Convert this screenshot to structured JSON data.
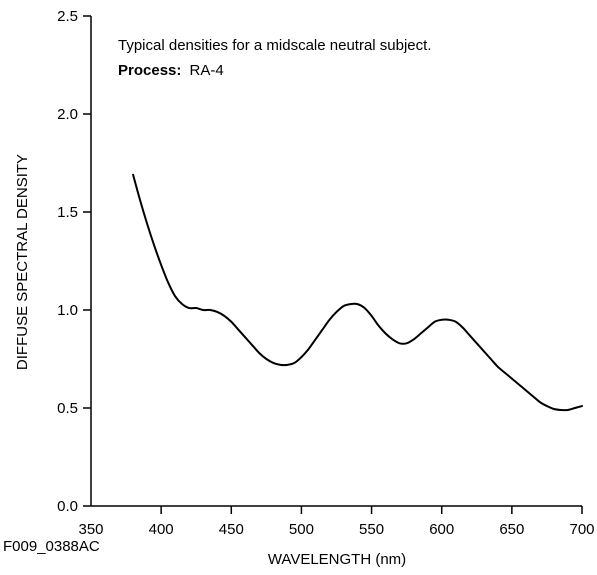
{
  "chart_data": {
    "type": "line",
    "title": "",
    "xlabel": "WAVELENGTH (nm)",
    "ylabel": "DIFFUSE SPECTRAL DENSITY",
    "xlim": [
      350,
      700
    ],
    "ylim": [
      0.0,
      2.5
    ],
    "xticks": [
      350,
      400,
      450,
      500,
      550,
      600,
      650,
      700
    ],
    "xtick_labels": [
      "350",
      "400",
      "450",
      "500",
      "550",
      "600",
      "650",
      "700"
    ],
    "yticks": [
      0.0,
      0.5,
      1.0,
      1.5,
      2.0,
      2.5
    ],
    "ytick_labels": [
      "0.0",
      "0.5",
      "1.0",
      "1.5",
      "2.0",
      "2.5"
    ],
    "grid": false,
    "annotation_line1": "Typical densities for a midscale neutral subject.",
    "annotation_process_label": "Process:",
    "annotation_process_value": "RA-4",
    "footnote": "F009_0388AC",
    "series": [
      {
        "x": [
          380,
          385,
          390,
          395,
          400,
          405,
          410,
          415,
          420,
          425,
          430,
          435,
          440,
          445,
          450,
          455,
          460,
          465,
          470,
          475,
          480,
          485,
          490,
          495,
          500,
          505,
          510,
          515,
          520,
          525,
          530,
          535,
          540,
          545,
          550,
          555,
          560,
          565,
          570,
          575,
          580,
          585,
          590,
          595,
          600,
          605,
          610,
          615,
          620,
          625,
          630,
          635,
          640,
          645,
          650,
          655,
          660,
          665,
          670,
          675,
          680,
          685,
          690,
          695,
          700
        ],
        "y": [
          1.69,
          1.56,
          1.44,
          1.33,
          1.23,
          1.14,
          1.07,
          1.03,
          1.01,
          1.01,
          1.0,
          1.0,
          0.99,
          0.97,
          0.94,
          0.9,
          0.86,
          0.82,
          0.78,
          0.75,
          0.73,
          0.72,
          0.72,
          0.73,
          0.76,
          0.8,
          0.85,
          0.9,
          0.95,
          0.99,
          1.02,
          1.03,
          1.03,
          1.01,
          0.97,
          0.92,
          0.88,
          0.85,
          0.83,
          0.83,
          0.85,
          0.88,
          0.91,
          0.94,
          0.95,
          0.95,
          0.94,
          0.91,
          0.87,
          0.83,
          0.79,
          0.75,
          0.71,
          0.68,
          0.65,
          0.62,
          0.59,
          0.56,
          0.53,
          0.51,
          0.495,
          0.49,
          0.49,
          0.5,
          0.51
        ]
      }
    ]
  }
}
